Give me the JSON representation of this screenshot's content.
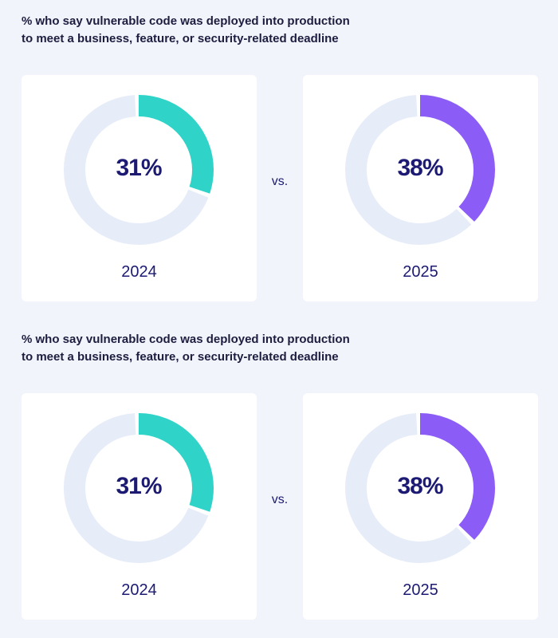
{
  "colors": {
    "track": "#e6ecf8",
    "series_2024": "#2fd3c7",
    "series_2025": "#8c5cf6",
    "text": "#1c1a72",
    "title": "#1d1d3f",
    "background": "#f1f4fb",
    "card": "#ffffff"
  },
  "vs_label": "vs.",
  "chart_data": [
    {
      "type": "pie",
      "title": "% who say vulnerable code was deployed into production to meet a business, feature, or security-related deadline",
      "title_lines": [
        "% who say vulnerable code was deployed into production",
        "to meet a business, feature, or security-related deadline"
      ],
      "units": "%",
      "series": [
        {
          "name": "2024",
          "value": 31,
          "label": "31%",
          "color": "#2fd3c7"
        },
        {
          "name": "2025",
          "value": 38,
          "label": "38%",
          "color": "#8c5cf6"
        }
      ]
    },
    {
      "type": "pie",
      "title": "% who say vulnerable code was deployed into production to meet a business, feature, or security-related deadline",
      "title_lines": [
        "% who say vulnerable code was deployed into production",
        "to meet a business, feature, or security-related deadline"
      ],
      "units": "%",
      "series": [
        {
          "name": "2024",
          "value": 31,
          "label": "31%",
          "color": "#2fd3c7"
        },
        {
          "name": "2025",
          "value": 38,
          "label": "38%",
          "color": "#8c5cf6"
        }
      ]
    }
  ]
}
